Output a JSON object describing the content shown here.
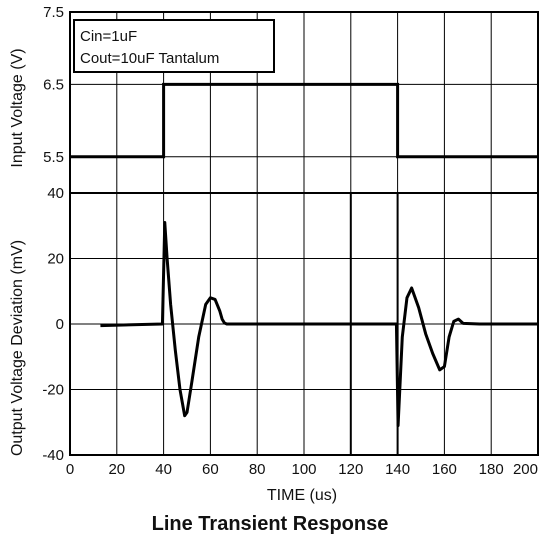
{
  "chart_data": [
    {
      "type": "line",
      "ylabel": "Input Voltage (V)",
      "xlim": [
        0,
        200
      ],
      "ylim": [
        5.0,
        7.5
      ],
      "yticks": [
        5.5,
        6.5,
        7.5
      ],
      "grid": true,
      "legend": {
        "placement": "top-left",
        "lines": [
          "Cin=1uF",
          "Cout=10uF Tantalum"
        ]
      },
      "series": [
        {
          "x": [
            0,
            40,
            40,
            140,
            140,
            200
          ],
          "y": [
            5.5,
            5.5,
            6.5,
            6.5,
            5.5,
            5.5
          ]
        }
      ]
    },
    {
      "type": "line",
      "ylabel": "Output Voltage Deviation (mV)",
      "xlabel": "TIME (us)",
      "xlim": [
        0,
        200
      ],
      "ylim": [
        -40,
        40
      ],
      "xticks": [
        0,
        20,
        40,
        60,
        80,
        100,
        120,
        140,
        160,
        180,
        200
      ],
      "yticks": [
        -40,
        -20,
        0,
        20,
        40
      ],
      "grid": true,
      "series": [
        {
          "x": [
            13,
            39.5,
            40.5,
            41.5,
            43,
            45,
            47,
            49,
            50,
            52,
            55,
            58,
            60,
            62,
            64,
            65,
            66,
            67,
            68,
            80,
            100,
            120,
            139.5,
            140.2,
            140.8,
            142,
            144,
            146,
            149,
            152,
            155,
            158,
            160,
            162,
            164,
            166,
            168,
            175,
            200
          ],
          "y": [
            -0.5,
            0,
            31,
            20,
            6,
            -8,
            -20,
            -28,
            -27,
            -18,
            -4,
            6,
            8,
            7.5,
            4,
            1.5,
            0.3,
            0,
            0,
            0,
            0,
            0,
            0,
            -31,
            -22,
            -4,
            8,
            11,
            5,
            -3,
            -9,
            -14,
            -13,
            -4,
            0.8,
            1.5,
            0.2,
            0,
            0
          ]
        }
      ]
    }
  ],
  "figure": {
    "title": "Line Transient Response"
  }
}
